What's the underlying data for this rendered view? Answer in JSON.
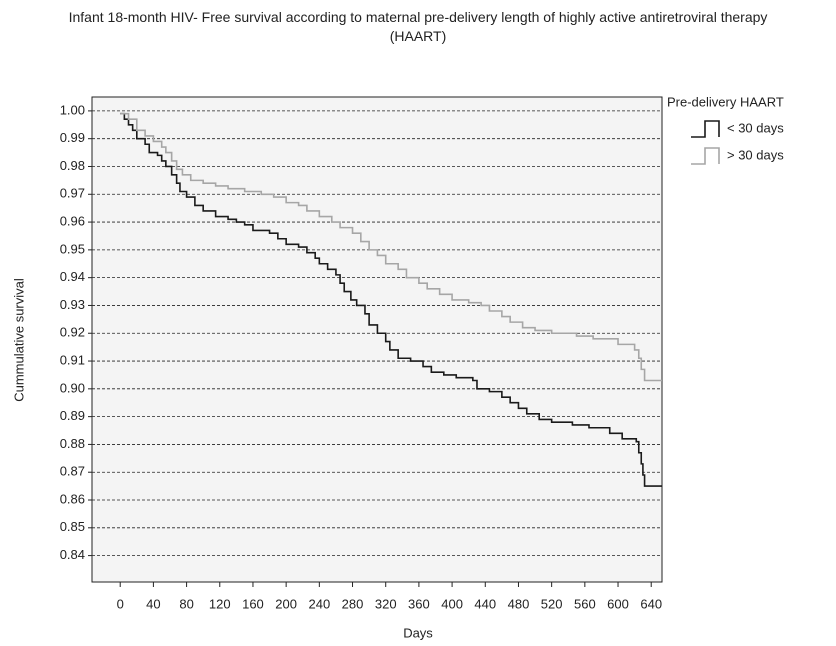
{
  "chart_data": {
    "type": "step",
    "title": "Infant 18-month HIV- Free survival according to maternal pre-delivery length of highly active antiretroviral therapy (HAART)",
    "xlabel": "Days",
    "ylabel": "Cummulative survival",
    "legend_title": "Pre-delivery HAART",
    "legend": "right",
    "grid": true,
    "xlim": [
      -34,
      653
    ],
    "ylim": [
      0.8305,
      1.005
    ],
    "xticks": [
      0,
      40,
      80,
      120,
      160,
      200,
      240,
      280,
      320,
      360,
      400,
      440,
      480,
      520,
      560,
      600,
      640
    ],
    "yticks": [
      {
        "value": 1,
        "label": "1.00"
      },
      0.99,
      0.98,
      0.97,
      0.96,
      0.95,
      0.94,
      0.93,
      0.92,
      0.91,
      {
        "value": 0.9,
        "label": "0.90"
      },
      0.89,
      0.88,
      0.87,
      0.86,
      0.85,
      0.84
    ],
    "series": [
      {
        "name": "< 30 days",
        "color": "#1a1a1a",
        "x": [
          0,
          5,
          10,
          15,
          20,
          30,
          35,
          45,
          50,
          55,
          62,
          68,
          72,
          80,
          90,
          100,
          115,
          130,
          140,
          150,
          160,
          180,
          190,
          200,
          215,
          225,
          235,
          240,
          250,
          260,
          265,
          270,
          278,
          285,
          295,
          300,
          310,
          320,
          325,
          335,
          350,
          365,
          375,
          390,
          405,
          425,
          430,
          445,
          460,
          470,
          480,
          490,
          505,
          520,
          545,
          565,
          590,
          605,
          622,
          625,
          628,
          630,
          632,
          653
        ],
        "values": [
          0.999,
          0.997,
          0.995,
          0.993,
          0.99,
          0.988,
          0.985,
          0.984,
          0.982,
          0.98,
          0.977,
          0.974,
          0.971,
          0.969,
          0.966,
          0.964,
          0.962,
          0.961,
          0.96,
          0.959,
          0.957,
          0.956,
          0.954,
          0.952,
          0.951,
          0.949,
          0.947,
          0.945,
          0.943,
          0.941,
          0.938,
          0.935,
          0.932,
          0.93,
          0.927,
          0.923,
          0.92,
          0.917,
          0.914,
          0.911,
          0.91,
          0.908,
          0.906,
          0.905,
          0.904,
          0.903,
          0.9,
          0.899,
          0.897,
          0.895,
          0.893,
          0.891,
          0.889,
          0.888,
          0.887,
          0.886,
          0.884,
          0.882,
          0.881,
          0.877,
          0.873,
          0.869,
          0.865,
          0.865
        ]
      },
      {
        "name": "> 30 days",
        "color": "#a6a6a6",
        "x": [
          0,
          10,
          20,
          30,
          40,
          50,
          55,
          62,
          68,
          75,
          85,
          100,
          115,
          130,
          150,
          170,
          185,
          200,
          215,
          225,
          240,
          255,
          265,
          280,
          290,
          300,
          310,
          320,
          335,
          345,
          360,
          370,
          385,
          400,
          420,
          435,
          445,
          460,
          470,
          485,
          500,
          520,
          550,
          570,
          600,
          620,
          625,
          628,
          632,
          653
        ],
        "values": [
          0.999,
          0.997,
          0.993,
          0.991,
          0.989,
          0.987,
          0.985,
          0.982,
          0.979,
          0.977,
          0.975,
          0.974,
          0.973,
          0.972,
          0.971,
          0.97,
          0.969,
          0.967,
          0.966,
          0.964,
          0.962,
          0.96,
          0.958,
          0.956,
          0.953,
          0.95,
          0.948,
          0.945,
          0.943,
          0.94,
          0.938,
          0.936,
          0.934,
          0.932,
          0.931,
          0.93,
          0.928,
          0.926,
          0.924,
          0.922,
          0.921,
          0.92,
          0.919,
          0.918,
          0.916,
          0.914,
          0.911,
          0.907,
          0.903,
          0.903
        ]
      }
    ]
  }
}
